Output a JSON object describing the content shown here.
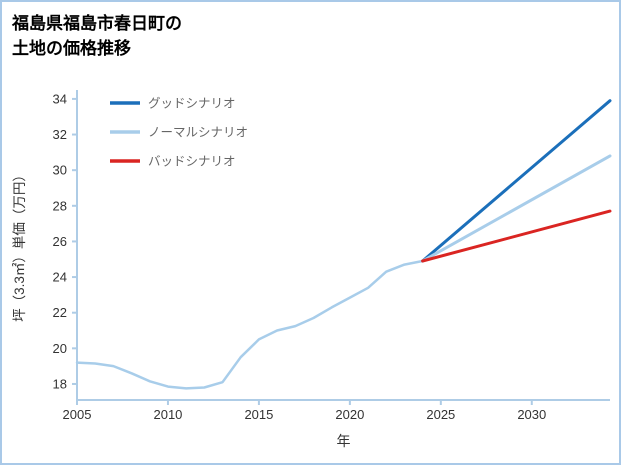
{
  "page": {
    "background": "#ffffff",
    "border_color": "#a9c9e8"
  },
  "title": {
    "line1": "福島県福島市春日町の",
    "line2": "土地の価格推移"
  },
  "chart_data": {
    "type": "line",
    "title": "福島県福島市春日町の土地の価格推移",
    "xlabel": "年",
    "ylabel": "坪（3.3㎡）単価（万円）",
    "xlim": [
      2005,
      2034.3
    ],
    "ylim": [
      17.1,
      34.5
    ],
    "xticks": [
      2005,
      2010,
      2015,
      2020,
      2025,
      2030
    ],
    "yticks": [
      18,
      20,
      22,
      24,
      26,
      28,
      30,
      32,
      34
    ],
    "grid": false,
    "legend_position": "top-left-inside",
    "axis_color": "#aecce6",
    "tick_label_color": "#333333",
    "legend_text_color": "#666666",
    "series": [
      {
        "key": "history",
        "label": "",
        "legend": false,
        "color": "#a8cdea",
        "width": 2.5,
        "x": [
          2005,
          2006,
          2007,
          2008,
          2009,
          2010,
          2011,
          2012,
          2013,
          2014,
          2015,
          2016,
          2017,
          2018,
          2019,
          2020,
          2021,
          2022,
          2023,
          2024
        ],
        "y": [
          19.2,
          19.15,
          19.0,
          18.6,
          18.15,
          17.85,
          17.75,
          17.8,
          18.1,
          19.5,
          20.5,
          21.0,
          21.25,
          21.7,
          22.3,
          22.85,
          23.4,
          24.3,
          24.7,
          24.9
        ]
      },
      {
        "key": "good",
        "label": "グッドシナリオ",
        "legend": true,
        "color": "#1b6fba",
        "width": 3,
        "x": [
          2024,
          2034.3
        ],
        "y": [
          24.9,
          33.9
        ]
      },
      {
        "key": "normal",
        "label": "ノーマルシナリオ",
        "legend": true,
        "color": "#a8cdea",
        "width": 3,
        "x": [
          2024,
          2034.3
        ],
        "y": [
          24.9,
          30.8
        ]
      },
      {
        "key": "bad",
        "label": "バッドシナリオ",
        "legend": true,
        "color": "#da2522",
        "width": 3,
        "x": [
          2024,
          2034.3
        ],
        "y": [
          24.9,
          27.7
        ]
      }
    ]
  }
}
